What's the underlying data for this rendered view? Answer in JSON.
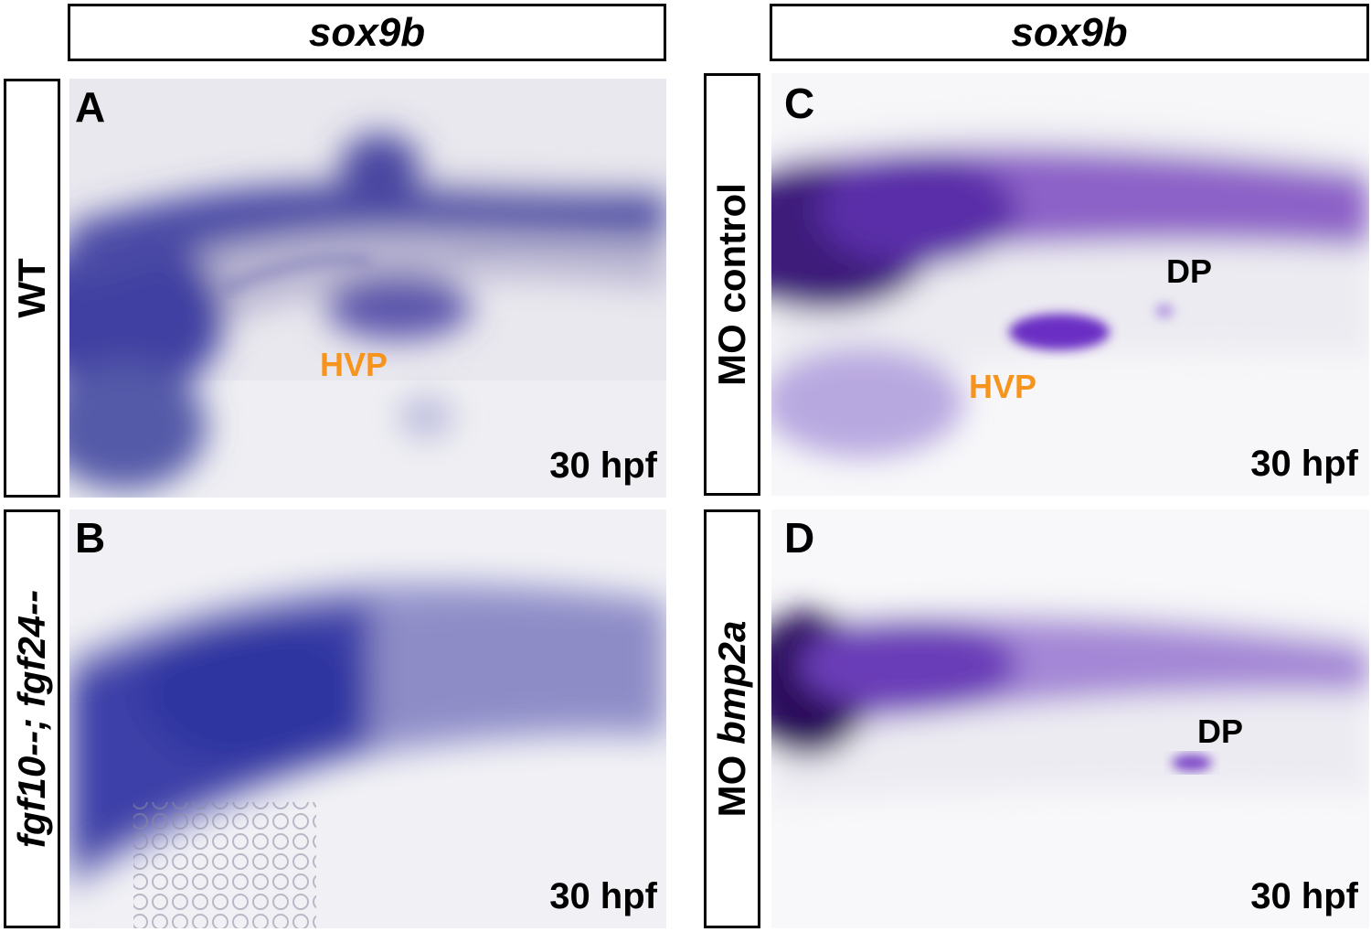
{
  "headers": {
    "left": "sox9b",
    "right": "sox9b"
  },
  "row_labels": {
    "a": "WT",
    "b": "fgf10--; fgf24--",
    "c": "MO control",
    "d_prefix": "MO ",
    "d_gene": "bmp2a"
  },
  "panels": {
    "a": {
      "letter": "A",
      "stage": "30 hpf",
      "hvp": "HVP"
    },
    "b": {
      "letter": "B",
      "stage": "30 hpf"
    },
    "c": {
      "letter": "C",
      "stage": "30 hpf",
      "hvp": "HVP",
      "dp": "DP"
    },
    "d": {
      "letter": "D",
      "stage": "30 hpf",
      "dp": "DP"
    }
  },
  "colors": {
    "annotation_orange": "#f7941d",
    "stain_blue": "#3a3aa0",
    "stain_purple": "#6a2fb0"
  }
}
